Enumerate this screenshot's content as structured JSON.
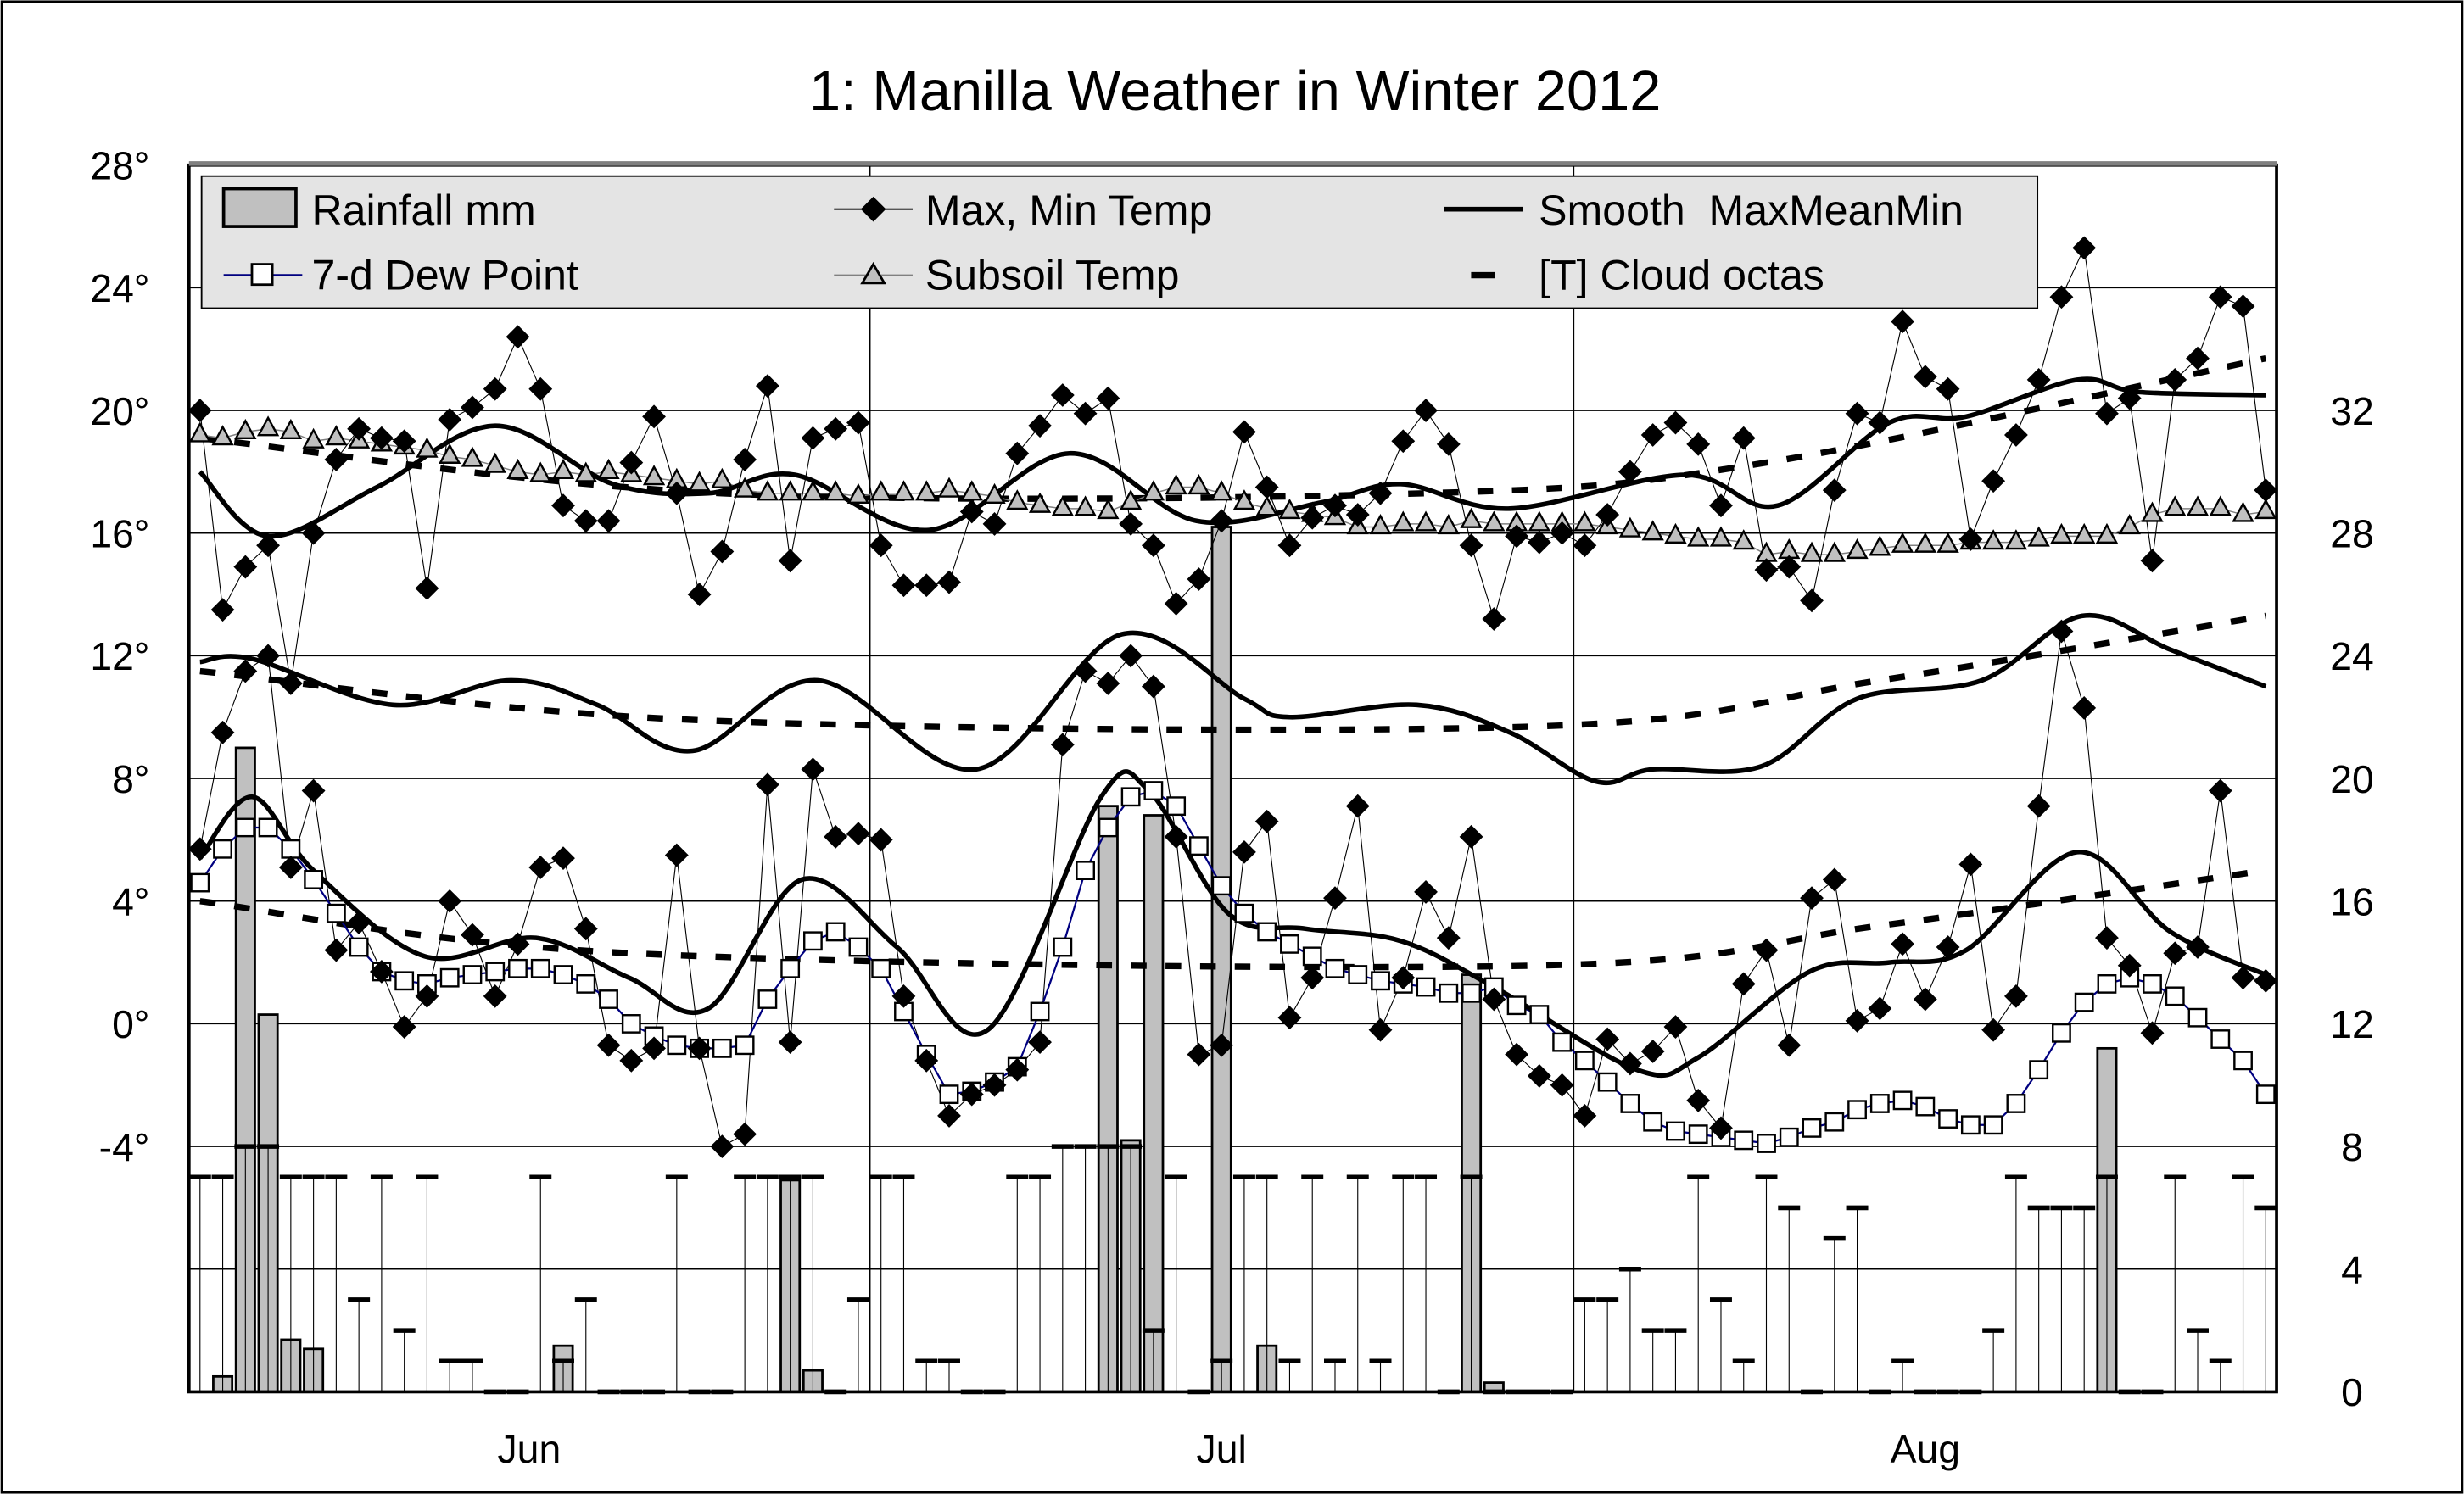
{
  "chart_data": {
    "type": "line",
    "title": "1: Manilla Weather in Winter 2012",
    "x_labels": [
      "Jun",
      "Jul",
      "Aug"
    ],
    "days": 92,
    "first_day": "Jun 1",
    "left_axis": {
      "ticks": [
        "28°",
        "24°",
        "20°",
        "16°",
        "12°",
        "8°",
        "4°",
        "0°",
        "-4°"
      ],
      "range": [
        -12,
        28
      ],
      "step": 4
    },
    "right_axis": {
      "ticks": [
        "32",
        "28",
        "24",
        "20",
        "16",
        "12",
        "8",
        "4",
        "0"
      ],
      "range": [
        0,
        40
      ],
      "step": 4
    },
    "grid": true,
    "legend": {
      "placement": "top",
      "entries": [
        "Rainfall mm",
        "Max, Min Temp",
        "Smooth  MaxMeanMin",
        "7-d Dew Point",
        "Subsoil Temp",
        "[T] Cloud octas"
      ]
    },
    "series": {
      "max_temp": [
        20.0,
        13.5,
        14.9,
        15.6,
        11.1,
        16.0,
        18.4,
        19.4,
        19.1,
        19.0,
        14.2,
        19.7,
        20.1,
        20.7,
        22.4,
        20.7,
        16.9,
        16.4,
        16.4,
        18.3,
        19.8,
        17.3,
        14.0,
        15.4,
        18.4,
        20.8,
        15.1,
        19.1,
        19.4,
        19.6,
        15.6,
        14.3,
        14.3,
        14.4,
        16.7,
        16.3,
        18.6,
        19.5,
        20.5,
        19.9,
        20.4,
        16.3,
        15.6,
        13.7,
        14.5,
        16.4,
        19.3,
        17.5,
        15.6,
        16.5,
        16.9,
        16.6,
        17.3,
        19.0,
        20.0,
        18.9,
        15.6,
        13.2,
        15.9,
        15.7,
        16.0,
        15.6,
        16.6,
        18.0,
        19.2,
        19.6,
        18.9,
        16.9,
        19.1,
        14.8,
        14.9,
        13.8,
        17.4,
        19.9,
        19.6,
        22.9,
        21.1,
        20.7,
        15.8,
        17.7,
        19.2,
        21.0,
        23.7,
        25.3,
        19.9,
        20.4,
        15.1,
        21.0,
        21.7,
        23.7,
        23.4,
        17.4
      ],
      "min_temp": [
        5.7,
        9.5,
        11.5,
        12.0,
        5.1,
        7.6,
        2.4,
        3.3,
        1.7,
        -0.1,
        0.9,
        4.0,
        2.9,
        0.9,
        2.6,
        5.1,
        5.4,
        3.1,
        -0.7,
        -1.2,
        -0.8,
        5.5,
        -0.8,
        -4.0,
        -3.6,
        7.8,
        -0.6,
        8.3,
        6.1,
        6.2,
        6.0,
        0.9,
        -1.2,
        -3.0,
        -2.3,
        -2.0,
        -1.5,
        -0.6,
        9.1,
        11.5,
        11.1,
        12.0,
        11.0,
        6.1,
        -1.0,
        -0.7,
        5.6,
        6.6,
        0.2,
        1.5,
        4.1,
        7.1,
        -0.2,
        1.5,
        4.3,
        2.8,
        6.1,
        0.8,
        -1.0,
        -1.7,
        -2.0,
        -3.0,
        -0.5,
        -1.3,
        -0.9,
        -0.1,
        -2.5,
        -3.4,
        1.3,
        2.4,
        -0.7,
        4.1,
        4.7,
        0.1,
        0.5,
        2.6,
        0.8,
        2.5,
        5.2,
        -0.2,
        0.9,
        7.1,
        12.8,
        10.3,
        2.8,
        1.9,
        -0.3,
        2.3,
        2.5,
        7.6,
        1.5,
        1.4
      ],
      "subsoil_temp": [
        19.2,
        19.1,
        19.3,
        19.4,
        19.3,
        19.0,
        19.1,
        19.0,
        18.9,
        18.8,
        18.7,
        18.5,
        18.4,
        18.2,
        18.0,
        17.9,
        18.0,
        17.9,
        18.0,
        17.9,
        17.8,
        17.7,
        17.6,
        17.7,
        17.4,
        17.3,
        17.3,
        17.3,
        17.3,
        17.2,
        17.3,
        17.3,
        17.3,
        17.4,
        17.3,
        17.2,
        17.0,
        16.9,
        16.8,
        16.8,
        16.7,
        17.0,
        17.3,
        17.5,
        17.5,
        17.3,
        17.0,
        16.8,
        16.7,
        16.6,
        16.5,
        16.2,
        16.2,
        16.3,
        16.3,
        16.2,
        16.4,
        16.3,
        16.3,
        16.3,
        16.3,
        16.3,
        16.2,
        16.1,
        16.0,
        15.9,
        15.8,
        15.8,
        15.7,
        15.3,
        15.4,
        15.3,
        15.3,
        15.4,
        15.5,
        15.6,
        15.6,
        15.6,
        15.7,
        15.7,
        15.7,
        15.8,
        15.9,
        15.9,
        15.9,
        16.2,
        16.6,
        16.8,
        16.8,
        16.8,
        16.6,
        16.7
      ],
      "dew_point_7d": [
        4.6,
        5.7,
        6.4,
        6.4,
        5.7,
        4.7,
        3.6,
        2.5,
        1.7,
        1.4,
        1.3,
        1.5,
        1.6,
        1.7,
        1.8,
        1.8,
        1.6,
        1.3,
        0.8,
        0.0,
        -0.4,
        -0.7,
        -0.8,
        -0.8,
        -0.7,
        0.8,
        1.8,
        2.7,
        3.0,
        2.5,
        1.8,
        0.4,
        -1.0,
        -2.3,
        -2.2,
        -1.9,
        -1.4,
        0.4,
        2.5,
        5.0,
        6.4,
        7.4,
        7.6,
        7.1,
        5.8,
        4.5,
        3.6,
        3.0,
        2.6,
        2.2,
        1.8,
        1.6,
        1.4,
        1.3,
        1.2,
        1.0,
        1.0,
        1.2,
        0.6,
        0.3,
        -0.6,
        -1.2,
        -1.9,
        -2.6,
        -3.2,
        -3.5,
        -3.6,
        -3.7,
        -3.8,
        -3.9,
        -3.7,
        -3.4,
        -3.2,
        -2.8,
        -2.6,
        -2.5,
        -2.7,
        -3.1,
        -3.3,
        -3.3,
        -2.6,
        -1.5,
        -0.3,
        0.7,
        1.3,
        1.5,
        1.3,
        0.9,
        0.2,
        -0.5,
        -1.2,
        -2.3
      ],
      "cloud_octas": [
        7,
        7,
        8,
        8,
        7,
        7,
        7,
        3,
        7,
        2,
        7,
        1,
        1,
        0,
        0,
        7,
        1,
        3,
        0,
        0,
        0,
        7,
        0,
        0,
        7,
        7,
        7,
        7,
        0,
        3,
        7,
        7,
        1,
        1,
        0,
        0,
        7,
        7,
        8,
        8,
        8,
        8,
        2,
        7,
        0,
        1,
        7,
        7,
        1,
        7,
        1,
        7,
        1,
        7,
        7,
        0,
        7,
        0,
        0,
        0,
        0,
        3,
        3,
        4,
        2,
        2,
        7,
        3,
        1,
        7,
        6,
        0,
        5,
        6,
        0,
        1,
        0,
        0,
        0,
        2,
        7,
        6,
        6,
        6,
        7,
        0,
        0,
        7,
        2,
        1,
        7,
        6
      ],
      "rainfall_mm": [
        {
          "day": 2,
          "value": 0.5
        },
        {
          "day": 3,
          "value": 21.0
        },
        {
          "day": 4,
          "value": 12.3
        },
        {
          "day": 5,
          "value": 1.7
        },
        {
          "day": 6,
          "value": 1.4
        },
        {
          "day": 17,
          "value": 1.5
        },
        {
          "day": 27,
          "value": 6.9
        },
        {
          "day": 28,
          "value": 0.7
        },
        {
          "day": 41,
          "value": 19.1
        },
        {
          "day": 42,
          "value": 8.2
        },
        {
          "day": 43,
          "value": 18.8
        },
        {
          "day": 46,
          "value": 28.2
        },
        {
          "day": 48,
          "value": 1.5
        },
        {
          "day": 57,
          "value": 13.6
        },
        {
          "day": 58,
          "value": 0.3
        },
        {
          "day": 85,
          "value": 11.2
        }
      ],
      "smooth_max": [
        [
          1,
          18.0
        ],
        [
          4,
          15.9
        ],
        [
          8.8,
          17.5
        ],
        [
          14,
          19.5
        ],
        [
          19.2,
          17.6
        ],
        [
          23.4,
          17.3
        ],
        [
          27.2,
          17.9
        ],
        [
          33.1,
          16.1
        ],
        [
          39.3,
          18.6
        ],
        [
          44.9,
          16.4
        ],
        [
          50.4,
          17.0
        ],
        [
          53.9,
          17.6
        ],
        [
          58.7,
          16.8
        ],
        [
          66.4,
          17.9
        ],
        [
          70.5,
          16.9
        ],
        [
          75.4,
          19.6
        ],
        [
          78.8,
          19.8
        ],
        [
          83.7,
          21.0
        ],
        [
          86.4,
          20.6
        ],
        [
          92,
          20.5
        ]
      ],
      "smooth_mean": [
        [
          1,
          11.8
        ],
        [
          3.3,
          11.9
        ],
        [
          9.5,
          10.4
        ],
        [
          14.7,
          11.2
        ],
        [
          18.5,
          10.4
        ],
        [
          22.7,
          8.9
        ],
        [
          28.2,
          11.2
        ],
        [
          35.2,
          8.3
        ],
        [
          41.6,
          12.7
        ],
        [
          47,
          10.6
        ],
        [
          49,
          10.0
        ],
        [
          54.6,
          10.4
        ],
        [
          58.7,
          9.5
        ],
        [
          62.5,
          7.9
        ],
        [
          65,
          8.3
        ],
        [
          69.8,
          8.4
        ],
        [
          74,
          10.6
        ],
        [
          79.5,
          11.2
        ],
        [
          83.9,
          13.3
        ],
        [
          87.8,
          12.2
        ],
        [
          92,
          11.0
        ]
      ],
      "smooth_min": [
        [
          1,
          5.4
        ],
        [
          3.3,
          7.4
        ],
        [
          6,
          5.0
        ],
        [
          10.9,
          2.2
        ],
        [
          15.8,
          2.8
        ],
        [
          19.9,
          1.5
        ],
        [
          23.4,
          0.5
        ],
        [
          27.5,
          4.7
        ],
        [
          31.7,
          2.5
        ],
        [
          35.7,
          -0.2
        ],
        [
          40.7,
          7.4
        ],
        [
          42.8,
          7.6
        ],
        [
          46.3,
          3.6
        ],
        [
          49.7,
          3.1
        ],
        [
          53.9,
          2.7
        ],
        [
          58,
          1.2
        ],
        [
          64.3,
          -1.5
        ],
        [
          67,
          -1.1
        ],
        [
          71.9,
          1.7
        ],
        [
          75.4,
          2.0
        ],
        [
          78.8,
          2.4
        ],
        [
          83.7,
          5.6
        ],
        [
          87.8,
          3.0
        ],
        [
          92,
          1.6
        ]
      ],
      "trend_max": [
        [
          1,
          19.1
        ],
        [
          24,
          17.3
        ],
        [
          55,
          17.3
        ],
        [
          70,
          18.3
        ],
        [
          92,
          21.7
        ]
      ],
      "trend_mean": [
        [
          1,
          11.5
        ],
        [
          23,
          9.9
        ],
        [
          60,
          9.7
        ],
        [
          75,
          11.2
        ],
        [
          92,
          13.3
        ]
      ],
      "trend_min": [
        [
          1,
          4.0
        ],
        [
          20,
          2.3
        ],
        [
          60,
          1.9
        ],
        [
          75,
          3.2
        ],
        [
          92,
          5.0
        ]
      ]
    }
  },
  "colors": {
    "dew_line": "#000080",
    "bar_fill": "#c0c0c0",
    "subsoil_fill": "#c0c0c0",
    "legend_fill": "#e4e4e4"
  }
}
